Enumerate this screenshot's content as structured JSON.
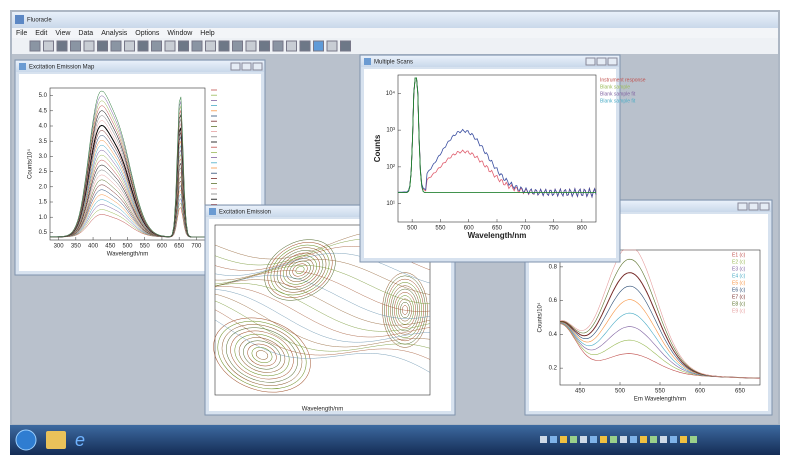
{
  "app": {
    "title": "Fluoracle",
    "menu": [
      "File",
      "Edit",
      "View",
      "Data",
      "Analysis",
      "Options",
      "Window",
      "Help"
    ]
  },
  "windows": [
    {
      "title": "Excitation Emission Map",
      "x_label": "Wavelength/nm",
      "y_label": "Counts/10⁴",
      "x_ticks": [
        "300",
        "350",
        "400",
        "450",
        "500",
        "550",
        "600",
        "650",
        "700"
      ],
      "y_ticks": [
        "0.5",
        "1.0",
        "1.5",
        "2.0",
        "2.5",
        "3.0",
        "3.5",
        "4.0",
        "4.5",
        "5.0"
      ]
    },
    {
      "x_label": "Em Wavelength/nm",
      "y_label": "Counts/10⁴",
      "x_ticks": [
        "450",
        "500",
        "550",
        "600",
        "650"
      ],
      "y_ticks": [
        "0.2",
        "0.4",
        "0.6",
        "0.8"
      ],
      "legend": [
        "E1 (c)",
        "E2 (c)",
        "E3 (c)",
        "E4 (c)",
        "E5 (c)",
        "E6 (c)",
        "E7 (c)",
        "E8 (c)",
        "E9 (c)"
      ]
    },
    {
      "title": "Excitation Emission",
      "x_label": "Wavelength/nm"
    },
    {
      "title": "Multiple Scans",
      "x_label": "Wavelength/nm",
      "y_label": "Counts",
      "x_ticks": [
        "500",
        "550",
        "600",
        "650",
        "700",
        "750",
        "800"
      ],
      "y_ticks": [
        "10¹",
        "10²",
        "10³",
        "10⁴"
      ],
      "legend": [
        "Instrument response",
        "Blank sample",
        "Blank sample fit",
        "Blank sample fit"
      ]
    }
  ]
}
